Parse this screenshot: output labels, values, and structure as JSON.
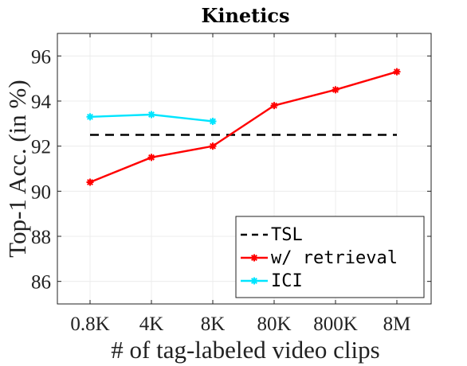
{
  "chart_data": {
    "type": "line",
    "title": "Kinetics",
    "xlabel": "# of tag-labeled video clips",
    "ylabel": "Top-1 Acc. (in %)",
    "categories": [
      "0.8K",
      "4K",
      "8K",
      "80K",
      "800K",
      "8M"
    ],
    "ylim": [
      85,
      97
    ],
    "yticks": [
      86,
      88,
      90,
      92,
      94,
      96
    ],
    "grid": true,
    "legend_position": "bottom-right",
    "series": [
      {
        "name": "TSL",
        "style": "dashed",
        "color": "#000000",
        "marker": "none",
        "value": 92.5
      },
      {
        "name": "w/ retrieval",
        "style": "solid",
        "color": "#ff0000",
        "marker": "asterisk",
        "values": [
          90.4,
          91.5,
          92.0,
          93.8,
          94.5,
          95.3
        ]
      },
      {
        "name": "ICI",
        "style": "solid",
        "color": "#00e5ff",
        "marker": "asterisk",
        "values": [
          93.3,
          93.4,
          93.1,
          null,
          null,
          null
        ]
      }
    ]
  }
}
